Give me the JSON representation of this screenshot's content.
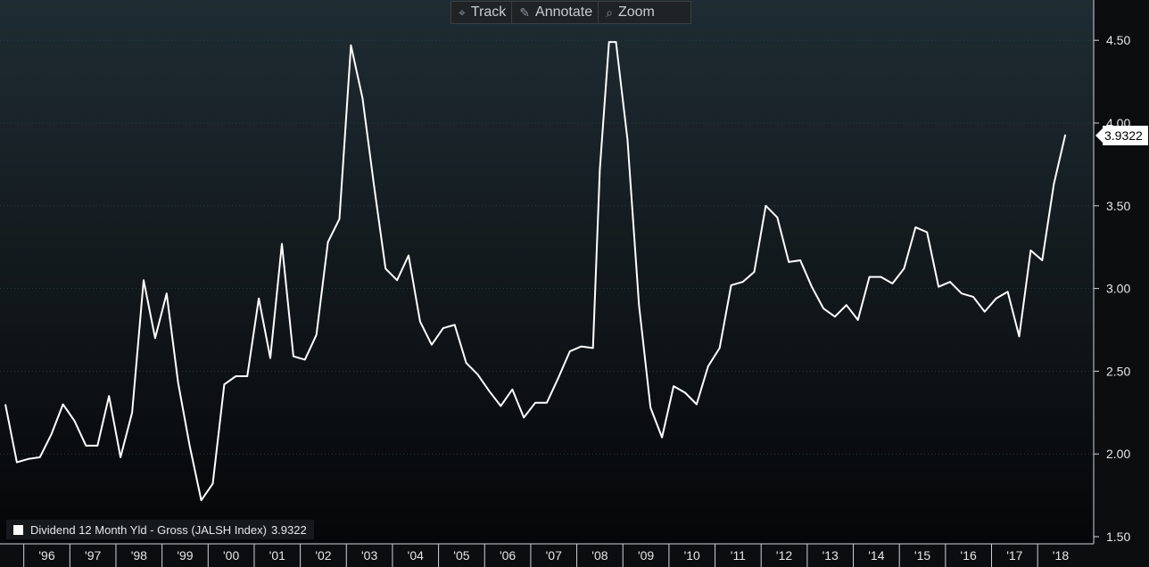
{
  "toolbar": {
    "track_label": "Track",
    "annotate_label": "Annotate",
    "zoom_label": "Zoom",
    "track_icon": "crosshair-icon",
    "annotate_icon": "pencil-icon",
    "zoom_icon": "magnifier-icon"
  },
  "colors": {
    "background_top": "#1f2c33",
    "background_bottom": "#050607",
    "line": "#ffffff",
    "grid": "#2e3a40",
    "axis_text": "#e6e6e6"
  },
  "chart_data": {
    "type": "line",
    "title": "",
    "xlabel": "",
    "ylabel": "",
    "ylim": [
      1.5,
      4.6
    ],
    "yticks": [
      "4.50",
      "4.00",
      "3.50",
      "3.00",
      "2.50",
      "2.00",
      "1.50"
    ],
    "ytick_values": [
      4.5,
      4.0,
      3.5,
      3.0,
      2.5,
      2.0,
      1.5
    ],
    "xtick_labels": [
      "'96",
      "'97",
      "'98",
      "'99",
      "'00",
      "'01",
      "'02",
      "'03",
      "'04",
      "'05",
      "'06",
      "'07",
      "'08",
      "'09",
      "'10",
      "'11",
      "'12",
      "'13",
      "'14",
      "'15",
      "'16",
      "'17",
      "'18"
    ],
    "xtick_years": [
      1996,
      1997,
      1998,
      1999,
      2000,
      2001,
      2002,
      2003,
      2004,
      2005,
      2006,
      2007,
      2008,
      2009,
      2010,
      2011,
      2012,
      2013,
      2014,
      2015,
      2016,
      2017,
      2018
    ],
    "xlim": [
      1995.6,
      2019.1
    ],
    "grid": "horizontal dotted",
    "legend_position": "bottom-left",
    "series": [
      {
        "name": "Dividend 12 Month Yld - Gross (JALSH Index)",
        "last_value": "3.9322",
        "x": [
          1995.6,
          1995.85,
          1996.1,
          1996.35,
          1996.6,
          1996.85,
          1997.1,
          1997.35,
          1997.6,
          1997.85,
          1998.1,
          1998.35,
          1998.6,
          1998.85,
          1999.1,
          1999.35,
          1999.6,
          1999.85,
          2000.1,
          2000.35,
          2000.6,
          2000.85,
          2001.1,
          2001.35,
          2001.6,
          2001.85,
          2002.1,
          2002.35,
          2002.6,
          2002.85,
          2003.1,
          2003.35,
          2003.6,
          2003.85,
          2004.1,
          2004.35,
          2004.6,
          2004.85,
          2005.1,
          2005.35,
          2005.6,
          2005.85,
          2006.1,
          2006.35,
          2006.6,
          2006.85,
          2007.1,
          2007.35,
          2007.6,
          2007.85,
          2008.1,
          2008.35,
          2008.5,
          2008.7,
          2008.85,
          2009.1,
          2009.35,
          2009.6,
          2009.85,
          2010.1,
          2010.35,
          2010.6,
          2010.85,
          2011.1,
          2011.35,
          2011.6,
          2011.85,
          2012.1,
          2012.35,
          2012.6,
          2012.85,
          2013.1,
          2013.35,
          2013.6,
          2013.85,
          2014.1,
          2014.35,
          2014.6,
          2014.85,
          2015.1,
          2015.35,
          2015.6,
          2015.85,
          2016.1,
          2016.35,
          2016.6,
          2016.85,
          2017.1,
          2017.35,
          2017.6,
          2017.85,
          2018.1,
          2018.35,
          2018.6
        ],
        "y": [
          2.3,
          1.95,
          1.97,
          1.98,
          2.12,
          2.3,
          2.2,
          2.05,
          2.05,
          2.35,
          1.98,
          2.25,
          3.05,
          2.7,
          2.97,
          2.43,
          2.05,
          1.72,
          1.82,
          2.42,
          2.47,
          2.47,
          2.94,
          2.58,
          3.27,
          2.59,
          2.57,
          2.72,
          3.28,
          3.42,
          4.47,
          4.15,
          3.62,
          3.12,
          3.05,
          3.2,
          2.8,
          2.66,
          2.76,
          2.78,
          2.55,
          2.48,
          2.38,
          2.29,
          2.39,
          2.22,
          2.31,
          2.31,
          2.46,
          2.62,
          2.65,
          2.64,
          3.72,
          4.49,
          4.49,
          3.9,
          2.9,
          2.28,
          2.1,
          2.41,
          2.37,
          2.3,
          2.53,
          2.64,
          3.02,
          3.04,
          3.1,
          3.5,
          3.43,
          3.16,
          3.17,
          3.01,
          2.88,
          2.83,
          2.9,
          2.81,
          3.07,
          3.07,
          3.03,
          3.12,
          3.37,
          3.34,
          3.01,
          3.04,
          2.97,
          2.95,
          2.86,
          2.94,
          2.98,
          2.71,
          3.23,
          3.17,
          3.63,
          3.93
        ]
      }
    ]
  }
}
